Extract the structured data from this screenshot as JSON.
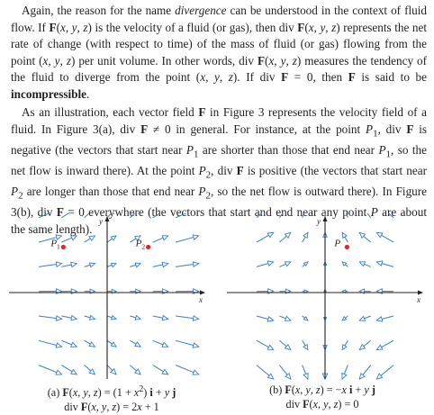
{
  "text": {
    "p1": "Again, the reason for the name <i>divergence</i> can be understood in the context of fluid flow. If <b>F</b>(<i>x</i>, <i>y</i>, <i>z</i>) is the velocity of a fluid (or gas), then div <b>F</b>(<i>x</i>, <i>y</i>, <i>z</i>) represents the net rate of change (with respect to time) of the mass of fluid (or gas) flowing from the point (<i>x</i>, <i>y</i>, <i>z</i>) per unit volume. In other words, div <b>F</b>(<i>x</i>, <i>y</i>, <i>z</i>) measures the tendency of the fluid to diverge from the point (<i>x</i>, <i>y</i>, <i>z</i>). If div <b>F</b> = 0, then <b>F</b> is said to be <b>incompressible</b>.",
    "p2": "As an illustration, each vector field <b>F</b> in Figure 3 represents the velocity field of a fluid. In Figure 3(a), div <b>F</b> ≠ 0 in general. For instance, at the point <i>P</i><sub>1</sub>, div <b>F</b> is negative (the vectors that start near <i>P</i><sub>1</sub> are shorter than those that end near <i>P</i><sub>1</sub>, so the net flow is inward there). At the point <i>P</i><sub>2</sub>, div <b>F</b> is positive (the vectors that start near <i>P</i><sub>2</sub> are longer than those that end near <i>P</i><sub>2</sub>, so the net flow is outward there). In Figure 3(b), div <b>F</b> = 0 everywhere (the vectors that start and end near any point <i>P</i> are about the same length)."
  },
  "figure_a": {
    "axis_x": "x",
    "axis_y": "y",
    "point_labels": [
      {
        "name": "P",
        "sub": "1",
        "data_x": -0.8,
        "data_y": 0.72
      },
      {
        "name": "P",
        "sub": "2",
        "data_x": 0.75,
        "data_y": 0.72
      }
    ],
    "caption_line1": "(a) <b>F</b>(<i>x</i>, <i>y</i>, <i>z</i>) = (1 + <i>x</i><sup>2</sup>) <b>i</b> + <i>y</i> <b>j</b>",
    "caption_line2": "div <b>F</b>(<i>x</i>, <i>y</i>, <i>z</i>) = 2<i>x</i> + 1"
  },
  "figure_b": {
    "axis_x": "x",
    "axis_y": "y",
    "point_labels": [
      {
        "name": "P",
        "sub": "",
        "data_x": 0.4,
        "data_y": 0.72
      }
    ],
    "caption_line1": "(b) <b>F</b>(<i>x</i>, <i>y</i>, <i>z</i>) = −<i>x</i> <b>i</b> + <i>y</i> <b>j</b>",
    "caption_line2": "div <b>F</b>(<i>x</i>, <i>y</i>, <i>z</i>) = 0"
  },
  "colors": {
    "arrow": "#3a7fc0",
    "point": "#e0282a",
    "axis": "#231f20"
  }
}
